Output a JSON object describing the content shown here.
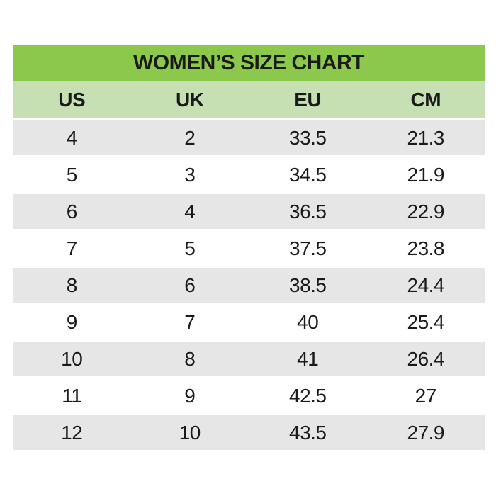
{
  "title": "WOMEN’S SIZE CHART",
  "columns": [
    "US",
    "UK",
    "EU",
    "CM"
  ],
  "rows": [
    [
      "4",
      "2",
      "33.5",
      "21.3"
    ],
    [
      "5",
      "3",
      "34.5",
      "21.9"
    ],
    [
      "6",
      "4",
      "36.5",
      "22.9"
    ],
    [
      "7",
      "5",
      "37.5",
      "23.8"
    ],
    [
      "8",
      "6",
      "38.5",
      "24.4"
    ],
    [
      "9",
      "7",
      "40",
      "25.4"
    ],
    [
      "10",
      "8",
      "41",
      "26.4"
    ],
    [
      "11",
      "9",
      "42.5",
      "27"
    ],
    [
      "12",
      "10",
      "43.5",
      "27.9"
    ]
  ],
  "colors": {
    "title_bg": "#8CC84B",
    "header_bg": "#C6E0B4",
    "row_alt_bg": "#E7E6E6",
    "text": "#1A1A1A"
  },
  "chart_data": {
    "type": "table",
    "title": "WOMEN’S SIZE CHART",
    "columns": [
      "US",
      "UK",
      "EU",
      "CM"
    ],
    "rows": [
      [
        4,
        2,
        33.5,
        21.3
      ],
      [
        5,
        3,
        34.5,
        21.9
      ],
      [
        6,
        4,
        36.5,
        22.9
      ],
      [
        7,
        5,
        37.5,
        23.8
      ],
      [
        8,
        6,
        38.5,
        24.4
      ],
      [
        9,
        7,
        40,
        25.4
      ],
      [
        10,
        8,
        41,
        26.4
      ],
      [
        11,
        9,
        42.5,
        27
      ],
      [
        12,
        10,
        43.5,
        27.9
      ]
    ],
    "layout": {
      "header_fill": "#C6E0B4",
      "title_fill": "#8CC84B",
      "alternating_row_fill": "#E7E6E6",
      "first_data_row_shaded": true
    }
  }
}
